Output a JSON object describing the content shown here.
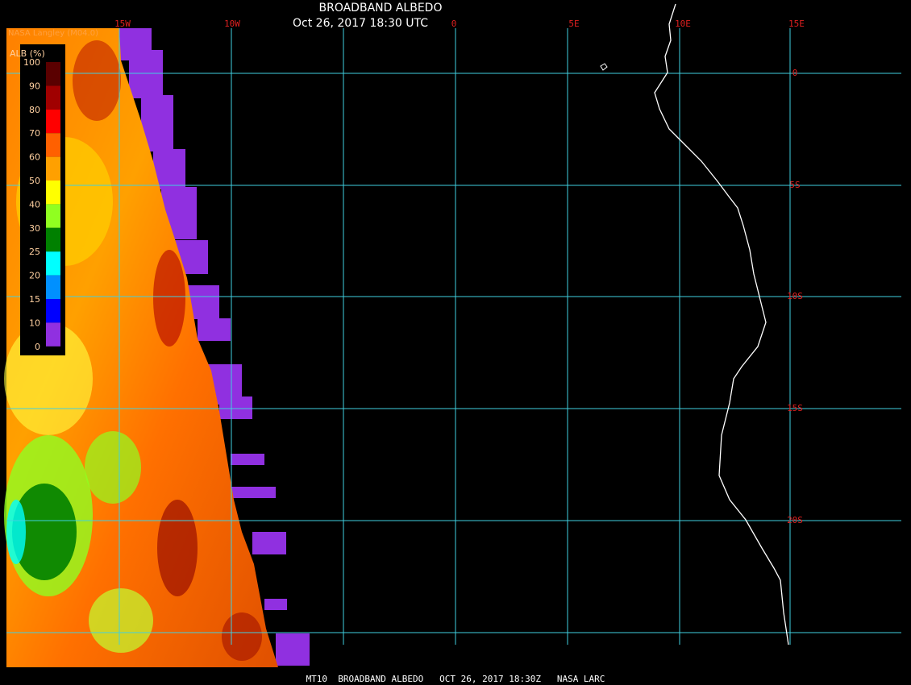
{
  "header": {
    "title": "BROADBAND ALBEDO",
    "subtitle": "Oct 26, 2017 18:30 UTC",
    "source": "NASA Langley (M04.0)"
  },
  "longitude_labels": [
    "15W",
    "10W",
    "0",
    "5E",
    "10E",
    "15E"
  ],
  "latitude_labels": [
    "0",
    "5S",
    "10S",
    "15S",
    "20S"
  ],
  "legend": {
    "title": "ALB (%)",
    "ticks": [
      "100",
      "90",
      "80",
      "70",
      "60",
      "50",
      "40",
      "30",
      "25",
      "20",
      "15",
      "10",
      "0"
    ],
    "colors": [
      "#5a0000",
      "#a00000",
      "#ff0000",
      "#ff6000",
      "#ffa000",
      "#ffff00",
      "#90ff20",
      "#008000",
      "#00ffff",
      "#0090ff",
      "#0000ff",
      "#9030e0"
    ]
  },
  "footer": "MT10  BROADBAND ALBEDO   OCT 26, 2017 18:30Z   NASA LARC"
}
